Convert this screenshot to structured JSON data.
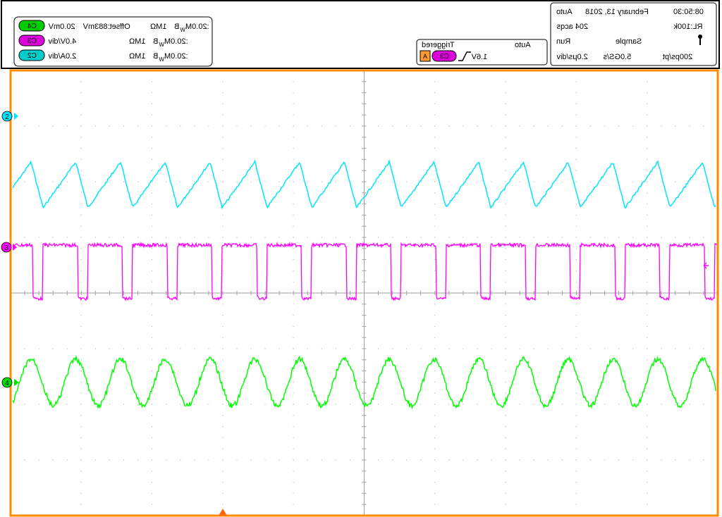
{
  "colors": {
    "border": "#ff8c00",
    "ch2": "#00e5ff",
    "ch3": "#ff00ff",
    "ch4": "#00ff00",
    "grid": "#a0a0a0"
  },
  "channels": [
    {
      "badge": "C4",
      "scale": "20.0mV",
      "offset": "Offset:883mV",
      "coupling": "1MΩ",
      "bw": "B",
      "bw_sub": "W",
      "bw_val": ":20.0M"
    },
    {
      "badge": "C3",
      "scale": "4.0V/div",
      "offset": "",
      "coupling": "1MΩ",
      "bw": "B",
      "bw_sub": "W",
      "bw_val": ":20.0M"
    },
    {
      "badge": "C2",
      "scale": "2.0A/div",
      "offset": "",
      "coupling": "1MΩ",
      "bw": "B",
      "bw_sub": "W",
      "bw_val": ":20.0M"
    }
  ],
  "trigger": {
    "status": "Triggered",
    "mode": "Auto",
    "source_badge": "A",
    "channel": "C3",
    "level": "1.6V"
  },
  "acquisition": {
    "auto": "Auto",
    "date": "February 13, 2018",
    "time": "08:50:30",
    "acqs": "204 acqs",
    "run": "Run",
    "sample": "Sample",
    "rl": "RL:100k",
    "timebase": "2.0μs/div",
    "rate": "5.0GS/s",
    "ps_per_pt": "200ps/pt"
  },
  "markers": {
    "ch2": "2",
    "ch3": "3",
    "ch4": "4"
  }
}
